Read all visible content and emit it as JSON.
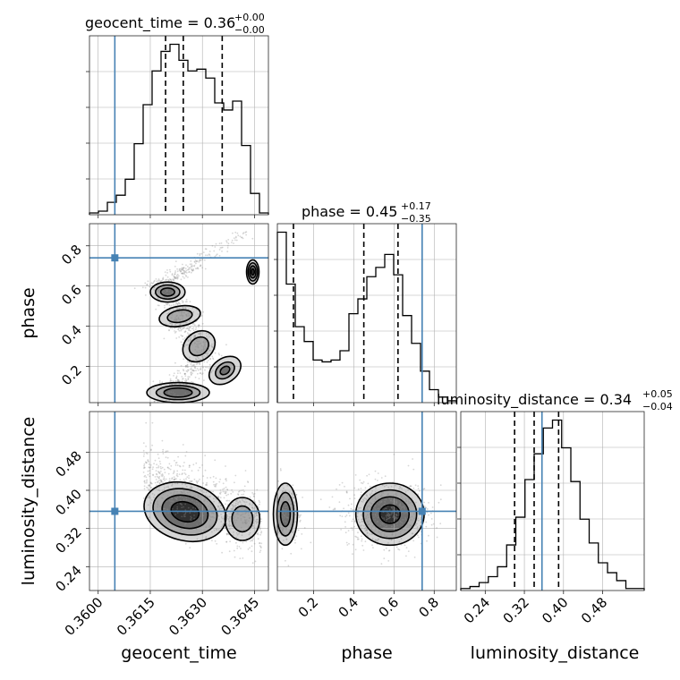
{
  "chart_data": {
    "type": "corner",
    "parameters": [
      "geocent_time",
      "phase",
      "luminosity_distance"
    ],
    "truth_color": "#4682b4",
    "truths": {
      "geocent_time": 0.36048,
      "phase": 0.74,
      "luminosity_distance": 0.356
    },
    "titles": [
      {
        "param": "geocent_time",
        "prefix": "geocent_time = ",
        "median": "0.36",
        "plus": "+0.00",
        "minus": "−0.00"
      },
      {
        "param": "phase",
        "prefix": "phase = ",
        "median": "0.45",
        "plus": "+0.17",
        "minus": "−0.35"
      },
      {
        "param": "luminosity_distance",
        "prefix": "luminosity_distance = ",
        "median": "0.34",
        "plus": "+0.05",
        "minus": "−0.04"
      }
    ],
    "ranges": {
      "geocent_time": [
        0.35975,
        0.3649
      ],
      "phase": [
        0.02,
        0.91
      ],
      "luminosity_distance": [
        0.19,
        0.565
      ]
    },
    "ticks": {
      "geocent_time": [
        0.36,
        0.3615,
        0.363,
        0.3645
      ],
      "phase": [
        0.2,
        0.4,
        0.6,
        0.8
      ],
      "luminosity_distance": [
        0.24,
        0.32,
        0.4,
        0.48
      ]
    },
    "tick_labels": {
      "geocent_time": [
        "0.3600",
        "0.3615",
        "0.3630",
        "0.3645"
      ],
      "phase": [
        "0.2",
        "0.4",
        "0.6",
        "0.8"
      ],
      "luminosity_distance": [
        "0.24",
        "0.32",
        "0.40",
        "0.48"
      ]
    },
    "axis_labels": {
      "geocent_time": "geocent_time",
      "phase": "phase",
      "luminosity_distance": "luminosity_distance"
    },
    "quantiles": {
      "geocent_time": [
        0.36194,
        0.36245,
        0.36357
      ],
      "phase": [
        0.1,
        0.45,
        0.62
      ],
      "luminosity_distance": [
        0.3,
        0.34,
        0.39
      ]
    },
    "histograms": {
      "geocent_time": [
        1,
        2,
        7,
        11,
        20,
        40,
        62,
        81,
        92,
        96,
        87,
        81,
        82,
        77,
        63,
        59,
        64,
        39,
        12,
        1
      ],
      "phase": [
        92,
        64,
        41,
        33,
        23,
        22,
        23,
        28,
        48,
        56,
        68,
        73,
        80,
        69,
        47,
        32,
        17,
        7,
        3,
        1
      ],
      "luminosity_distance": [
        1,
        2,
        4,
        7,
        12,
        23,
        37,
        56,
        69,
        82,
        86,
        72,
        55,
        36,
        24,
        14,
        9,
        5,
        1,
        1
      ]
    },
    "grid": true
  }
}
